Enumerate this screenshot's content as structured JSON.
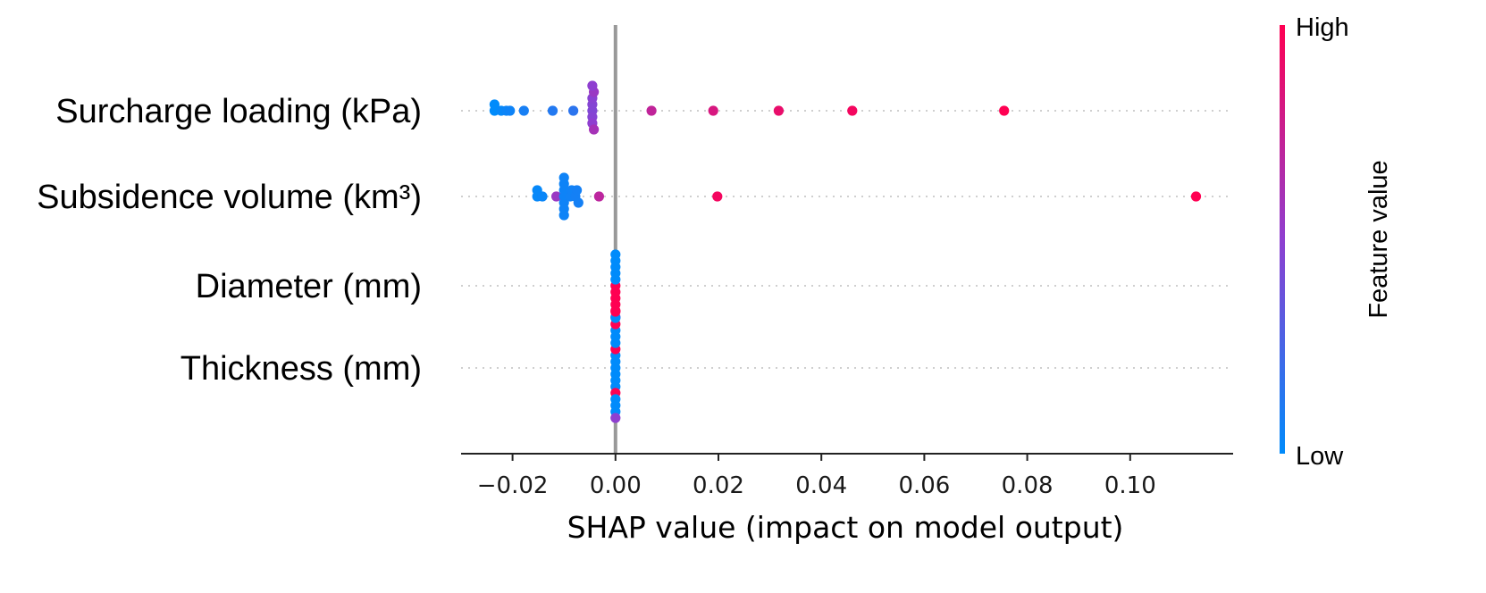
{
  "chart_data": {
    "type": "scatter",
    "subtype": "shap-beeswarm",
    "xlabel": "SHAP value (impact on model output)",
    "xlim": [
      -0.03,
      0.12
    ],
    "xticks": [
      -0.02,
      0.0,
      0.02,
      0.04,
      0.06,
      0.08,
      0.1
    ],
    "xtick_labels": [
      "−0.02",
      "0.00",
      "0.02",
      "0.04",
      "0.06",
      "0.08",
      "0.10"
    ],
    "colorbar": {
      "title": "Feature value",
      "high_label": "High",
      "low_label": "Low",
      "low_color": "#008bfb",
      "mid_color": "#8f3fd0",
      "high_color": "#ff0052"
    },
    "features": [
      {
        "name": "Surcharge loading (kPa)",
        "points": [
          {
            "x": -0.0235,
            "v": 0.0
          },
          {
            "x": -0.0235,
            "v": 0.0
          },
          {
            "x": -0.0222,
            "v": 0.02
          },
          {
            "x": -0.0212,
            "v": 0.04
          },
          {
            "x": -0.0205,
            "v": 0.05
          },
          {
            "x": -0.0178,
            "v": 0.08
          },
          {
            "x": -0.0122,
            "v": 0.12
          },
          {
            "x": -0.0082,
            "v": 0.15
          },
          {
            "x": -0.0045,
            "v": 0.45
          },
          {
            "x": -0.0045,
            "v": 0.46
          },
          {
            "x": -0.0045,
            "v": 0.47
          },
          {
            "x": -0.0045,
            "v": 0.48
          },
          {
            "x": -0.0045,
            "v": 0.5
          },
          {
            "x": -0.0042,
            "v": 0.55
          },
          {
            "x": -0.0042,
            "v": 0.6
          },
          {
            "x": -0.0045,
            "v": 0.5
          },
          {
            "x": 0.007,
            "v": 0.72
          },
          {
            "x": 0.019,
            "v": 0.82
          },
          {
            "x": 0.0317,
            "v": 0.9
          },
          {
            "x": 0.046,
            "v": 0.95
          },
          {
            "x": 0.0755,
            "v": 1.0
          }
        ]
      },
      {
        "name": "Subsidence volume (km³)",
        "points": [
          {
            "x": -0.0152,
            "v": 0.02
          },
          {
            "x": -0.0152,
            "v": 0.02
          },
          {
            "x": -0.0142,
            "v": 0.03
          },
          {
            "x": -0.0115,
            "v": 0.55
          },
          {
            "x": -0.01,
            "v": 0.05
          },
          {
            "x": -0.01,
            "v": 0.05
          },
          {
            "x": -0.01,
            "v": 0.05
          },
          {
            "x": -0.01,
            "v": 0.05
          },
          {
            "x": -0.01,
            "v": 0.05
          },
          {
            "x": -0.01,
            "v": 0.05
          },
          {
            "x": -0.01,
            "v": 0.05
          },
          {
            "x": -0.0088,
            "v": 0.06
          },
          {
            "x": -0.0085,
            "v": 0.06
          },
          {
            "x": -0.0078,
            "v": 0.07
          },
          {
            "x": -0.0075,
            "v": 0.07
          },
          {
            "x": -0.0072,
            "v": 0.07
          },
          {
            "x": -0.0032,
            "v": 0.7
          },
          {
            "x": 0.0198,
            "v": 0.95
          },
          {
            "x": 0.1128,
            "v": 1.0
          }
        ]
      },
      {
        "name": "Diameter (mm)",
        "points": [
          {
            "x": 0.0,
            "v": 1.0
          },
          {
            "x": 0.0,
            "v": 0.0
          },
          {
            "x": 0.0,
            "v": 1.0
          },
          {
            "x": 0.0,
            "v": 0.0
          },
          {
            "x": 0.0,
            "v": 1.0
          },
          {
            "x": 0.0,
            "v": 0.0
          },
          {
            "x": 0.0,
            "v": 1.0
          },
          {
            "x": 0.0,
            "v": 0.0
          },
          {
            "x": 0.0,
            "v": 1.0
          },
          {
            "x": 0.0,
            "v": 0.0
          },
          {
            "x": 0.0,
            "v": 0.5
          }
        ]
      },
      {
        "name": "Thickness (mm)",
        "points": [
          {
            "x": 0.0,
            "v": 0.0
          },
          {
            "x": 0.0,
            "v": 0.0
          },
          {
            "x": 0.0,
            "v": 0.0
          },
          {
            "x": 0.0,
            "v": 0.0
          },
          {
            "x": 0.0,
            "v": 0.0
          },
          {
            "x": 0.0,
            "v": 1.0
          },
          {
            "x": 0.0,
            "v": 0.0
          },
          {
            "x": 0.0,
            "v": 0.0
          },
          {
            "x": 0.0,
            "v": 1.0
          },
          {
            "x": 0.0,
            "v": 0.0
          },
          {
            "x": 0.0,
            "v": 0.0
          },
          {
            "x": 0.0,
            "v": 0.0
          },
          {
            "x": 0.0,
            "v": 0.0
          },
          {
            "x": 0.0,
            "v": 1.0
          },
          {
            "x": 0.0,
            "v": 0.0
          },
          {
            "x": 0.0,
            "v": 0.0
          },
          {
            "x": 0.0,
            "v": 0.5
          },
          {
            "x": 0.0,
            "v": 1.0
          }
        ]
      }
    ]
  }
}
